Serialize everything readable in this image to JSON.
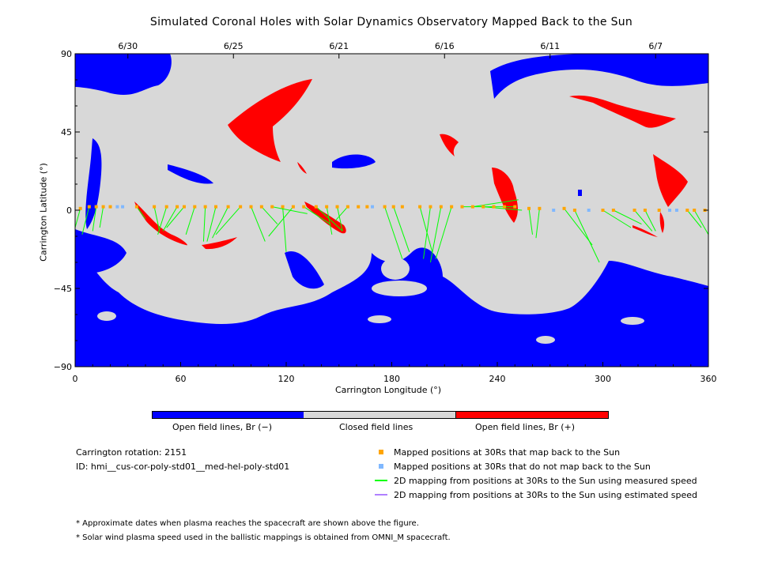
{
  "title": "Simulated Coronal Holes with Solar Dynamics Observatory Mapped Back to the Sun",
  "chart_data": {
    "type": "scatter",
    "xlabel": "Carrington Longitude (°)",
    "ylabel": "Carrington Latitude (°)",
    "xlim": [
      0,
      360
    ],
    "ylim": [
      -90,
      90
    ],
    "x_ticks": [
      "0",
      "60",
      "120",
      "180",
      "240",
      "300",
      "360"
    ],
    "y_ticks": [
      "90",
      "45",
      "0",
      "−45",
      "−90"
    ],
    "date_ticks": [
      {
        "date": "6/30",
        "lon": 30
      },
      {
        "date": "6/25",
        "lon": 90
      },
      {
        "date": "6/21",
        "lon": 150
      },
      {
        "date": "6/16",
        "lon": 210
      },
      {
        "date": "6/11",
        "lon": 270
      },
      {
        "date": "6/7",
        "lon": 330
      }
    ],
    "colors": {
      "open_neg": "#0000ff",
      "closed": "#d8d8d8",
      "open_pos": "#ff0000",
      "mapped": "#ffa500",
      "not_mapped": "#80b8ff",
      "measured_line": "#00ff00",
      "estimated_line": "#b080ff"
    },
    "mapped_points": [
      [
        3,
        1
      ],
      [
        8,
        2
      ],
      [
        12,
        2
      ],
      [
        16,
        2
      ],
      [
        20,
        2
      ],
      [
        35,
        2
      ],
      [
        45,
        2
      ],
      [
        52,
        2
      ],
      [
        58,
        2
      ],
      [
        62,
        2
      ],
      [
        68,
        2
      ],
      [
        74,
        2
      ],
      [
        80,
        2
      ],
      [
        87,
        2
      ],
      [
        94,
        2
      ],
      [
        100,
        2
      ],
      [
        106,
        2
      ],
      [
        112,
        2
      ],
      [
        118,
        2
      ],
      [
        124,
        2
      ],
      [
        130,
        2
      ],
      [
        137,
        2
      ],
      [
        143,
        2
      ],
      [
        149,
        2
      ],
      [
        155,
        2
      ],
      [
        161,
        2
      ],
      [
        166,
        2
      ],
      [
        176,
        2
      ],
      [
        181,
        2
      ],
      [
        186,
        2
      ],
      [
        196,
        2
      ],
      [
        202,
        2
      ],
      [
        208,
        2
      ],
      [
        214,
        2
      ],
      [
        220,
        2
      ],
      [
        226,
        2
      ],
      [
        232,
        2
      ],
      [
        238,
        2
      ],
      [
        244,
        2
      ],
      [
        250,
        2
      ],
      [
        258,
        1
      ],
      [
        264,
        1
      ],
      [
        278,
        1
      ],
      [
        284,
        0
      ],
      [
        300,
        0
      ],
      [
        306,
        0
      ],
      [
        318,
        0
      ],
      [
        324,
        0
      ],
      [
        332,
        0
      ],
      [
        348,
        0
      ],
      [
        352,
        0
      ],
      [
        358,
        0
      ]
    ],
    "not_mapped_points": [
      [
        24,
        2
      ],
      [
        27,
        2
      ],
      [
        169,
        2
      ],
      [
        272,
        0
      ],
      [
        292,
        0
      ],
      [
        338,
        0
      ],
      [
        342,
        0
      ]
    ],
    "measured_lines": [
      [
        [
          3,
          1
        ],
        [
          0,
          -10
        ]
      ],
      [
        [
          8,
          2
        ],
        [
          4,
          -14
        ]
      ],
      [
        [
          12,
          2
        ],
        [
          10,
          -12
        ]
      ],
      [
        [
          16,
          2
        ],
        [
          14,
          -10
        ]
      ],
      [
        [
          35,
          2
        ],
        [
          40,
          -5
        ]
      ],
      [
        [
          45,
          2
        ],
        [
          48,
          -12
        ]
      ],
      [
        [
          52,
          2
        ],
        [
          47,
          -14
        ]
      ],
      [
        [
          58,
          2
        ],
        [
          50,
          -12
        ]
      ],
      [
        [
          62,
          2
        ],
        [
          52,
          -10
        ]
      ],
      [
        [
          68,
          2
        ],
        [
          63,
          -14
        ]
      ],
      [
        [
          74,
          2
        ],
        [
          73,
          -18
        ]
      ],
      [
        [
          80,
          2
        ],
        [
          75,
          -18
        ]
      ],
      [
        [
          87,
          2
        ],
        [
          78,
          -16
        ]
      ],
      [
        [
          94,
          2
        ],
        [
          80,
          -14
        ]
      ],
      [
        [
          100,
          2
        ],
        [
          108,
          -18
        ]
      ],
      [
        [
          106,
          2
        ],
        [
          115,
          -8
        ]
      ],
      [
        [
          112,
          2
        ],
        [
          132,
          -2
        ]
      ],
      [
        [
          118,
          2
        ],
        [
          120,
          -24
        ]
      ],
      [
        [
          124,
          2
        ],
        [
          110,
          -15
        ]
      ],
      [
        [
          130,
          2
        ],
        [
          145,
          -8
        ]
      ],
      [
        [
          137,
          2
        ],
        [
          152,
          -12
        ]
      ],
      [
        [
          143,
          2
        ],
        [
          146,
          -14
        ]
      ],
      [
        [
          149,
          2
        ],
        [
          152,
          -12
        ]
      ],
      [
        [
          155,
          2
        ],
        [
          148,
          -6
        ]
      ],
      [
        [
          176,
          2
        ],
        [
          186,
          -28
        ]
      ],
      [
        [
          181,
          2
        ],
        [
          190,
          -24
        ]
      ],
      [
        [
          196,
          2
        ],
        [
          203,
          -24
        ]
      ],
      [
        [
          202,
          2
        ],
        [
          198,
          -28
        ]
      ],
      [
        [
          208,
          2
        ],
        [
          202,
          -30
        ]
      ],
      [
        [
          214,
          2
        ],
        [
          205,
          -28
        ]
      ],
      [
        [
          220,
          2
        ],
        [
          250,
          2
        ]
      ],
      [
        [
          226,
          2
        ],
        [
          252,
          6
        ]
      ],
      [
        [
          232,
          2
        ],
        [
          254,
          0
        ]
      ],
      [
        [
          300,
          0
        ],
        [
          316,
          -10
        ]
      ],
      [
        [
          306,
          0
        ],
        [
          322,
          -8
        ]
      ],
      [
        [
          318,
          0
        ],
        [
          328,
          -12
        ]
      ],
      [
        [
          324,
          0
        ],
        [
          330,
          -12
        ]
      ],
      [
        [
          348,
          0
        ],
        [
          356,
          -10
        ]
      ],
      [
        [
          352,
          0
        ],
        [
          360,
          -14
        ]
      ],
      [
        [
          284,
          0
        ],
        [
          298,
          -30
        ]
      ],
      [
        [
          278,
          1
        ],
        [
          294,
          -20
        ]
      ],
      [
        [
          264,
          1
        ],
        [
          262,
          -16
        ]
      ],
      [
        [
          258,
          1
        ],
        [
          260,
          -14
        ]
      ]
    ],
    "regions_note": "Open field lines, Br (−) in blue; Closed field lines in gray; Open field lines, Br (+) in red"
  },
  "colorbar": {
    "labels": [
      "Open field lines, Br (−)",
      "Closed field lines",
      "Open field lines, Br (+)"
    ]
  },
  "info": {
    "rotation": "Carrington rotation: 2151",
    "id": "ID: hmi__cus-cor-poly-std01__med-hel-poly-std01"
  },
  "legend": [
    {
      "label": "Mapped positions at 30Rs that map back to the Sun"
    },
    {
      "label": "Mapped positions at 30Rs that do not map back to the Sun"
    },
    {
      "label": "2D mapping from positions at 30Rs to the Sun using measured speed"
    },
    {
      "label": "2D mapping from positions at 30Rs to the Sun using estimated speed"
    }
  ],
  "footnotes": [
    "* Approximate dates when plasma reaches the spacecraft are shown above the figure.",
    "* Solar wind plasma speed used in the ballistic mappings is obtained from OMNI_M spacecraft."
  ]
}
